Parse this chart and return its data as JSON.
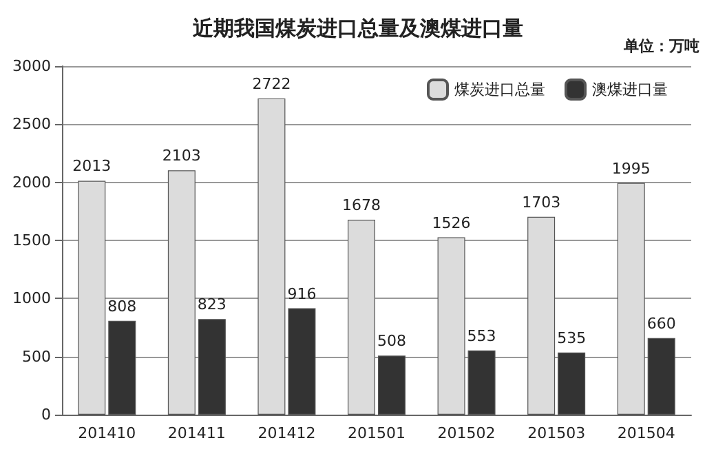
{
  "chart_data": {
    "type": "bar",
    "title": "近期我国煤炭进口总量及澳煤进口量",
    "annotations": [
      "单位：万吨"
    ],
    "categories": [
      "201410",
      "201411",
      "201412",
      "201501",
      "201502",
      "201503",
      "201504"
    ],
    "series": [
      {
        "name": "煤炭进口总量",
        "color": "#dcdcdc",
        "values": [
          2013,
          2103,
          2722,
          1678,
          1526,
          1703,
          1995
        ]
      },
      {
        "name": "澳煤进口量",
        "color": "#333333",
        "values": [
          808,
          823,
          916,
          508,
          553,
          535,
          660
        ]
      }
    ],
    "ylim": [
      0,
      3000
    ],
    "yticks": [
      0,
      500,
      1000,
      1500,
      2000,
      2500,
      3000
    ],
    "grid": "y",
    "legend": "top right",
    "data_labels": true
  }
}
